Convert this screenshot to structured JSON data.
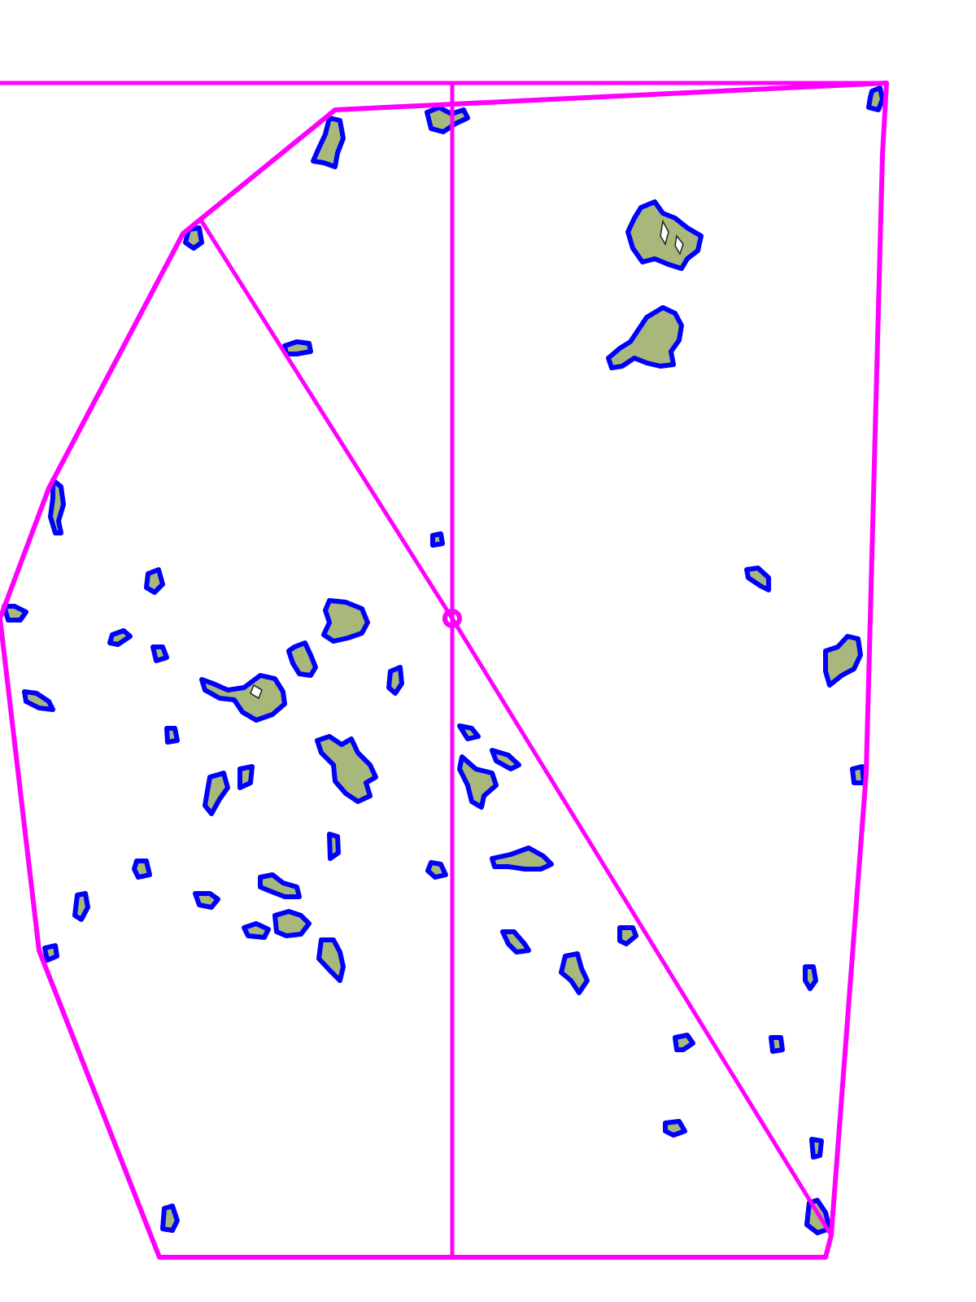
{
  "map": {
    "background_color": "#ffffff",
    "boundary_color": "#ff00ff",
    "patch_outline_color": "#0000ff",
    "patch_fill_color": "#a8b87a",
    "gap_fill_color": "#ffffff",
    "features": [
      "polygon-boundary",
      "top-boundary-line",
      "vertical-divider",
      "diagonal-divider",
      "intersection-marker",
      "vegetation-patches"
    ]
  }
}
